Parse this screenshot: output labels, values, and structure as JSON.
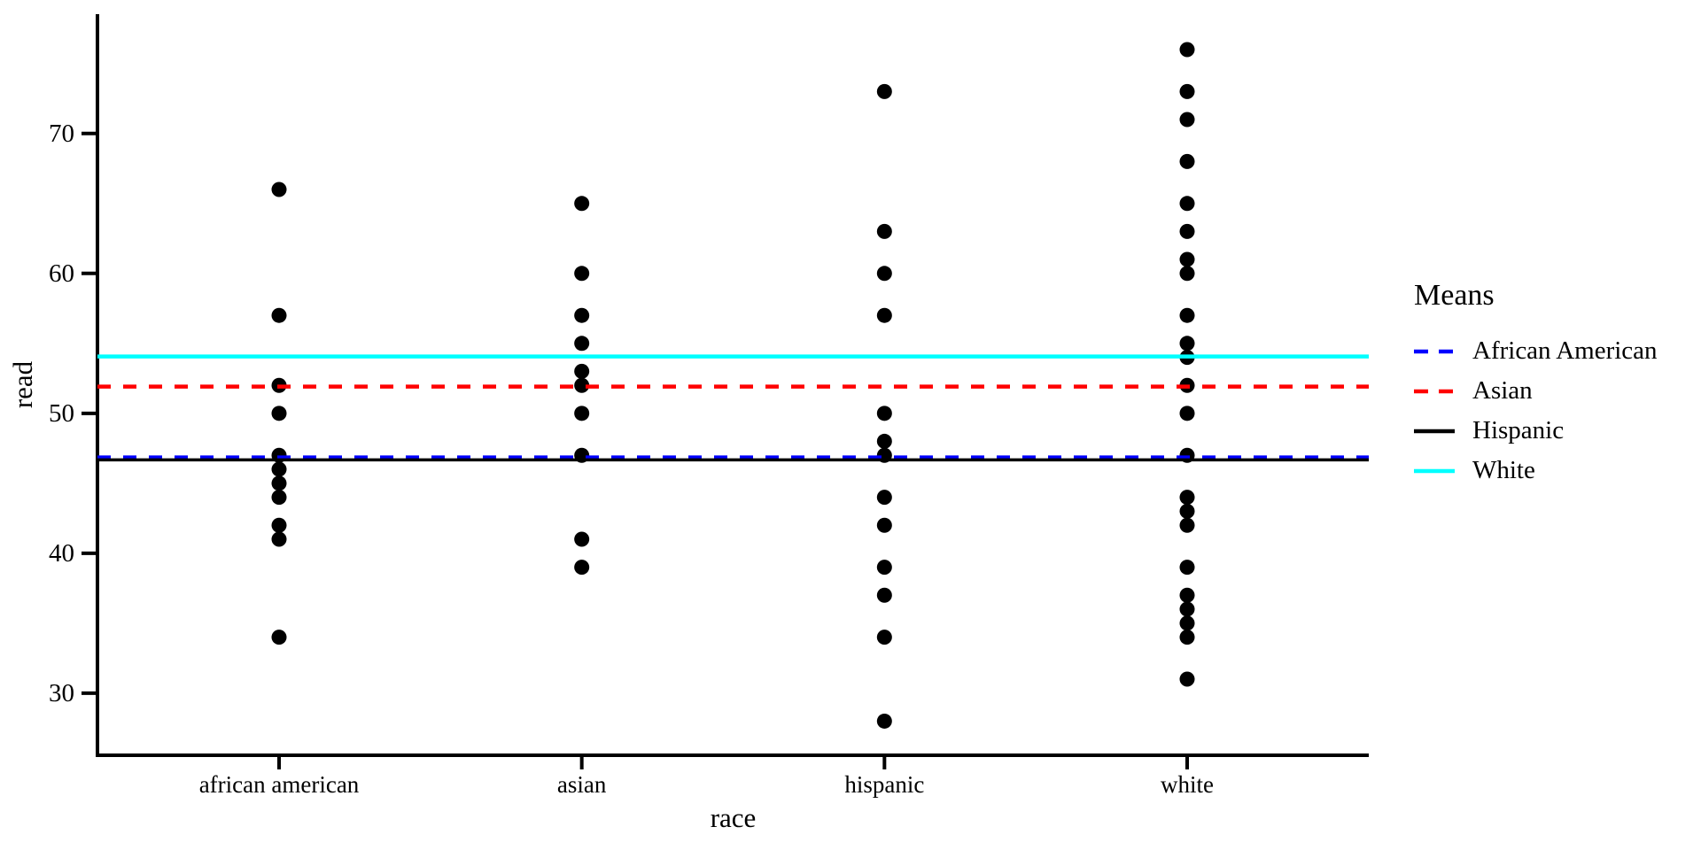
{
  "chart_data": {
    "type": "scatter",
    "title": "",
    "xlabel": "race",
    "ylabel": "read",
    "categories": [
      "african american",
      "asian",
      "hispanic",
      "white"
    ],
    "y_ticks": [
      30,
      40,
      50,
      60,
      70
    ],
    "ylim": [
      25.56,
      78.53
    ],
    "grid": false,
    "point_color": "#000000",
    "legend_position": "right",
    "legend_title": "Means",
    "series": [
      {
        "name": "african american",
        "points": [
          66,
          57,
          52,
          50,
          47,
          46,
          45,
          44,
          42,
          41,
          34
        ]
      },
      {
        "name": "asian",
        "points": [
          65,
          60,
          57,
          55,
          53,
          52,
          50,
          47,
          41,
          39
        ]
      },
      {
        "name": "hispanic",
        "points": [
          73,
          63,
          60,
          57,
          50,
          48,
          47,
          44,
          42,
          39,
          37,
          34,
          28
        ]
      },
      {
        "name": "white",
        "points": [
          76,
          73,
          71,
          68,
          65,
          63,
          61,
          60,
          57,
          55,
          54,
          52,
          50,
          47,
          44,
          43,
          42,
          39,
          37,
          36,
          35,
          34,
          31
        ]
      }
    ],
    "mean_lines": [
      {
        "label": "African American",
        "value": 46.85,
        "color": "#0000ff",
        "style": "dashed"
      },
      {
        "label": "Asian",
        "value": 51.91,
        "color": "#ff0000",
        "style": "dashed"
      },
      {
        "label": "Hispanic",
        "value": 46.67,
        "color": "#000000",
        "style": "solid"
      },
      {
        "label": "White",
        "value": 54.06,
        "color": "#00ffff",
        "style": "solid"
      }
    ]
  }
}
